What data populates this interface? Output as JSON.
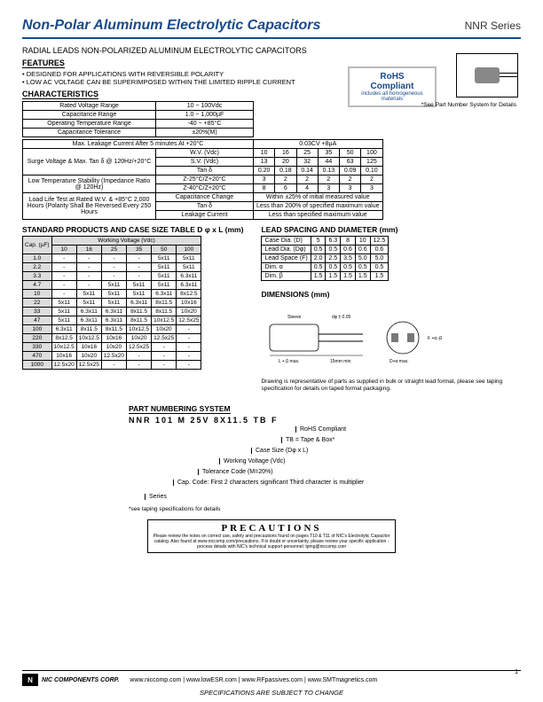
{
  "header": {
    "title": "Non-Polar Aluminum Electrolytic Capacitors",
    "series": "NNR Series"
  },
  "subtitle": "RADIAL LEADS NON-POLARIZED ALUMINUM ELECTROLYTIC CAPACITORS",
  "features_label": "FEATURES",
  "features": [
    "• DESIGNED FOR APPLICATIONS WITH REVERSIBLE POLARITY",
    "• LOW AC VOLTAGE CAN BE SUPERIMPOSED WITHIN THE LIMITED RIPPLE CURRENT"
  ],
  "rohs": {
    "line1": "RoHS",
    "line2": "Compliant",
    "sub": "includes all homogeneous materials"
  },
  "see_part": "*See Part Number System for Details",
  "char_label": "CHARACTERISTICS",
  "char_rows": [
    [
      "Rated Voltage Range",
      "10 ~ 100Vdc"
    ],
    [
      "Capacitance Range",
      "1.0 ~ 1,000µF"
    ],
    [
      "Operating Temperature Range",
      "-40 ~ +85°C"
    ],
    [
      "Capacitance Tolerance",
      "±20%(M)"
    ],
    [
      "Max. Leakage Current After 5 minutes At +20°C",
      "0.03CV +8µA"
    ]
  ],
  "surge": {
    "header_cells": [
      "W.V. (Vdc)",
      "10",
      "16",
      "25",
      "35",
      "50",
      "100"
    ],
    "left_label": "Surge Voltage & Max. Tan δ @ 120Hz/+20°C",
    "rows": [
      [
        "S.V. (Vdc)",
        "13",
        "20",
        "32",
        "44",
        "63",
        "125"
      ],
      [
        "Tan δ",
        "0.20",
        "0.18",
        "0.14",
        "0.13",
        "0.09",
        "0.10"
      ]
    ],
    "lts_label": "Low Temperature Stability (Impedance Ratio @ 120Hz)",
    "lts_rows": [
      [
        "Z-25°C/Z+20°C",
        "3",
        "2",
        "2",
        "2",
        "2",
        "2"
      ],
      [
        "Z-40°C/Z+20°C",
        "8",
        "6",
        "4",
        "3",
        "3",
        "3"
      ]
    ],
    "load_label": "Load Life Test at Rated W.V. & +85°C 2,000 Hours (Polarity Shall Be Reversed Every 250 Hours",
    "load_rows": [
      [
        "Capacitance Change",
        "Within ±25% of initial measured value"
      ],
      [
        "Tan δ",
        "Less than 200% of specified maximum value"
      ],
      [
        "Leakage Current",
        "Less than specified maximum value"
      ]
    ]
  },
  "std_label": "STANDARD PRODUCTS AND CASE SIZE TABLE D φ x  L  (mm)",
  "case": {
    "cap_header": "Cap. (µF)",
    "wv_header": "Working Voltage (Vdc)",
    "wv_cols": [
      "10",
      "16",
      "25",
      "35",
      "50",
      "100"
    ],
    "rows": [
      [
        "1.0",
        "-",
        "-",
        "-",
        "-",
        "5x11",
        "5x11"
      ],
      [
        "2.2",
        "-",
        "-",
        "-",
        "-",
        "5x11",
        "5x11"
      ],
      [
        "3.3",
        "-",
        "-",
        "-",
        "-",
        "5x11",
        "6.3x11"
      ],
      [
        "4.7",
        "-",
        "-",
        "5x11",
        "5x11",
        "5x11",
        "6.3x11"
      ],
      [
        "10",
        "-",
        "5x11",
        "5x11",
        "5x11",
        "6.3x11",
        "8x12.5"
      ],
      [
        "22",
        "5x11",
        "5x11",
        "5x11",
        "6.3x11",
        "8x11.5",
        "10x16"
      ],
      [
        "33",
        "5x11",
        "6.3x11",
        "6.3x11",
        "8x11.5",
        "8x11.5",
        "10x20"
      ],
      [
        "47",
        "5x11",
        "6.3x11",
        "6.3x11",
        "8x11.5",
        "10x12.5",
        "12.5x25"
      ],
      [
        "100",
        "6.3x11",
        "8x11.5",
        "8x11.5",
        "10x12.5",
        "10x20",
        "-"
      ],
      [
        "220",
        "8x12.5",
        "10x12.5",
        "10x16",
        "10x20",
        "12.5x25",
        "-"
      ],
      [
        "330",
        "10x12.5",
        "10x16",
        "10x20",
        "12.5x25",
        "-",
        "-"
      ],
      [
        "470",
        "10x16",
        "10x20",
        "12.5x20",
        "-",
        "-",
        "-"
      ],
      [
        "1000",
        "12.5x20",
        "12.5x25",
        "-",
        "-",
        "-",
        "-"
      ]
    ]
  },
  "lead_label": "LEAD SPACING AND DIAMETER (mm)",
  "lead": {
    "cols": [
      "Case Dia. (D)",
      "5",
      "6.3",
      "8",
      "10",
      "12.5"
    ],
    "rows": [
      [
        "Lead Dia. (Dφ)",
        "0.5",
        "0.5",
        "0.6",
        "0.6",
        "0.6"
      ],
      [
        "Lead Space (F)",
        "2.0",
        "2.5",
        "3.5",
        "5.0",
        "5.0"
      ],
      [
        "Dim. α",
        "0.5",
        "0.5",
        "0.5",
        "0.5",
        "0.5"
      ],
      [
        "Dim. β",
        "1.5",
        "1.5",
        "1.5",
        "1.5",
        "1.5"
      ]
    ]
  },
  "dims_label": "DIMENSIONS (mm)",
  "dims_text": [
    "Sleeve",
    "dφ ± 0.05",
    "F +α,-β",
    "L + β max.",
    "15mm min.",
    "D+α max."
  ],
  "dims_note": "Drawing is representative of parts as supplied in bulk or straight lead format, please see taping specification for details on taped format packaging.",
  "pn_label": "PART NUMBERING SYSTEM",
  "pn_example": "NNR 101 M 25V 8X11.5 TB F",
  "pn_items": [
    "RoHS Compliant",
    "TB = Tape & Box*",
    "Case Size (Dφ x L)",
    "Working Voltage (Vdc)",
    "Tolerance Code (M=20%)",
    "Cap. Code: First 2 characters significant Third character is multiplier",
    "Series"
  ],
  "pn_note": "*see taping specifications for details",
  "prec_head": "PRECAUTIONS",
  "prec_body": "Please review the notes on correct use, safety and precautions found on pages T10 & T11 of NIC's Electrolytic Capacitor catalog. Also found at www.niccomp.com/precautions. If in doubt or uncertainty, please review your specific application - process details with NIC's technical support personnel: tpmg@niccomp.com",
  "footer": {
    "corp": "NIC COMPONENTS CORP.",
    "links": "www.niccomp.com  |  www.lowESR.com  |  www.RFpassives.com  |  www.SMTmagnetics.com",
    "center": "SPECIFICATIONS ARE SUBJECT TO CHANGE",
    "page": "1"
  },
  "colors": {
    "brand": "#1a4a8a",
    "gray": "#dddddd"
  }
}
